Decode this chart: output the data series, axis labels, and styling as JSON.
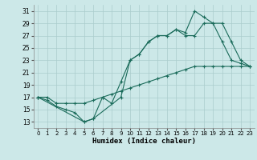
{
  "title": "",
  "xlabel": "Humidex (Indice chaleur)",
  "bg_color": "#cce8e8",
  "grid_color": "#aacccc",
  "line_color": "#1a6b5a",
  "xlim": [
    -0.5,
    23.5
  ],
  "ylim": [
    12,
    32
  ],
  "xticks": [
    0,
    1,
    2,
    3,
    4,
    5,
    6,
    7,
    8,
    9,
    10,
    11,
    12,
    13,
    14,
    15,
    16,
    17,
    18,
    19,
    20,
    21,
    22,
    23
  ],
  "yticks": [
    13,
    15,
    17,
    19,
    21,
    23,
    25,
    27,
    29,
    31
  ],
  "line1_x": [
    0,
    1,
    2,
    3,
    4,
    5,
    6,
    7,
    8,
    9,
    10,
    11,
    12,
    13,
    14,
    15,
    16,
    17,
    18,
    19,
    20,
    21,
    22,
    23
  ],
  "line1_y": [
    17,
    16.5,
    15.5,
    15,
    14.5,
    13,
    13.5,
    17,
    16,
    19.5,
    23,
    24,
    26,
    27,
    27,
    28,
    27,
    27,
    29,
    29,
    26,
    23,
    22.5,
    22
  ],
  "line2_x": [
    0,
    1,
    2,
    3,
    4,
    5,
    6,
    7,
    8,
    9,
    10,
    11,
    12,
    13,
    14,
    15,
    16,
    17,
    18,
    19,
    20,
    21,
    22,
    23
  ],
  "line2_y": [
    17,
    17,
    16,
    16,
    16,
    16,
    16.5,
    17,
    17.5,
    18,
    18.5,
    19,
    19.5,
    20,
    20.5,
    21,
    21.5,
    22,
    22,
    22,
    22,
    22,
    22,
    22
  ],
  "line3_x": [
    0,
    5,
    6,
    9,
    10,
    11,
    12,
    13,
    14,
    15,
    16,
    17,
    18,
    19,
    20,
    21,
    22,
    23
  ],
  "line3_y": [
    17,
    13,
    13.5,
    17,
    23,
    24,
    26,
    27,
    27,
    28,
    27.5,
    31,
    30,
    29,
    29,
    26,
    23,
    22
  ]
}
